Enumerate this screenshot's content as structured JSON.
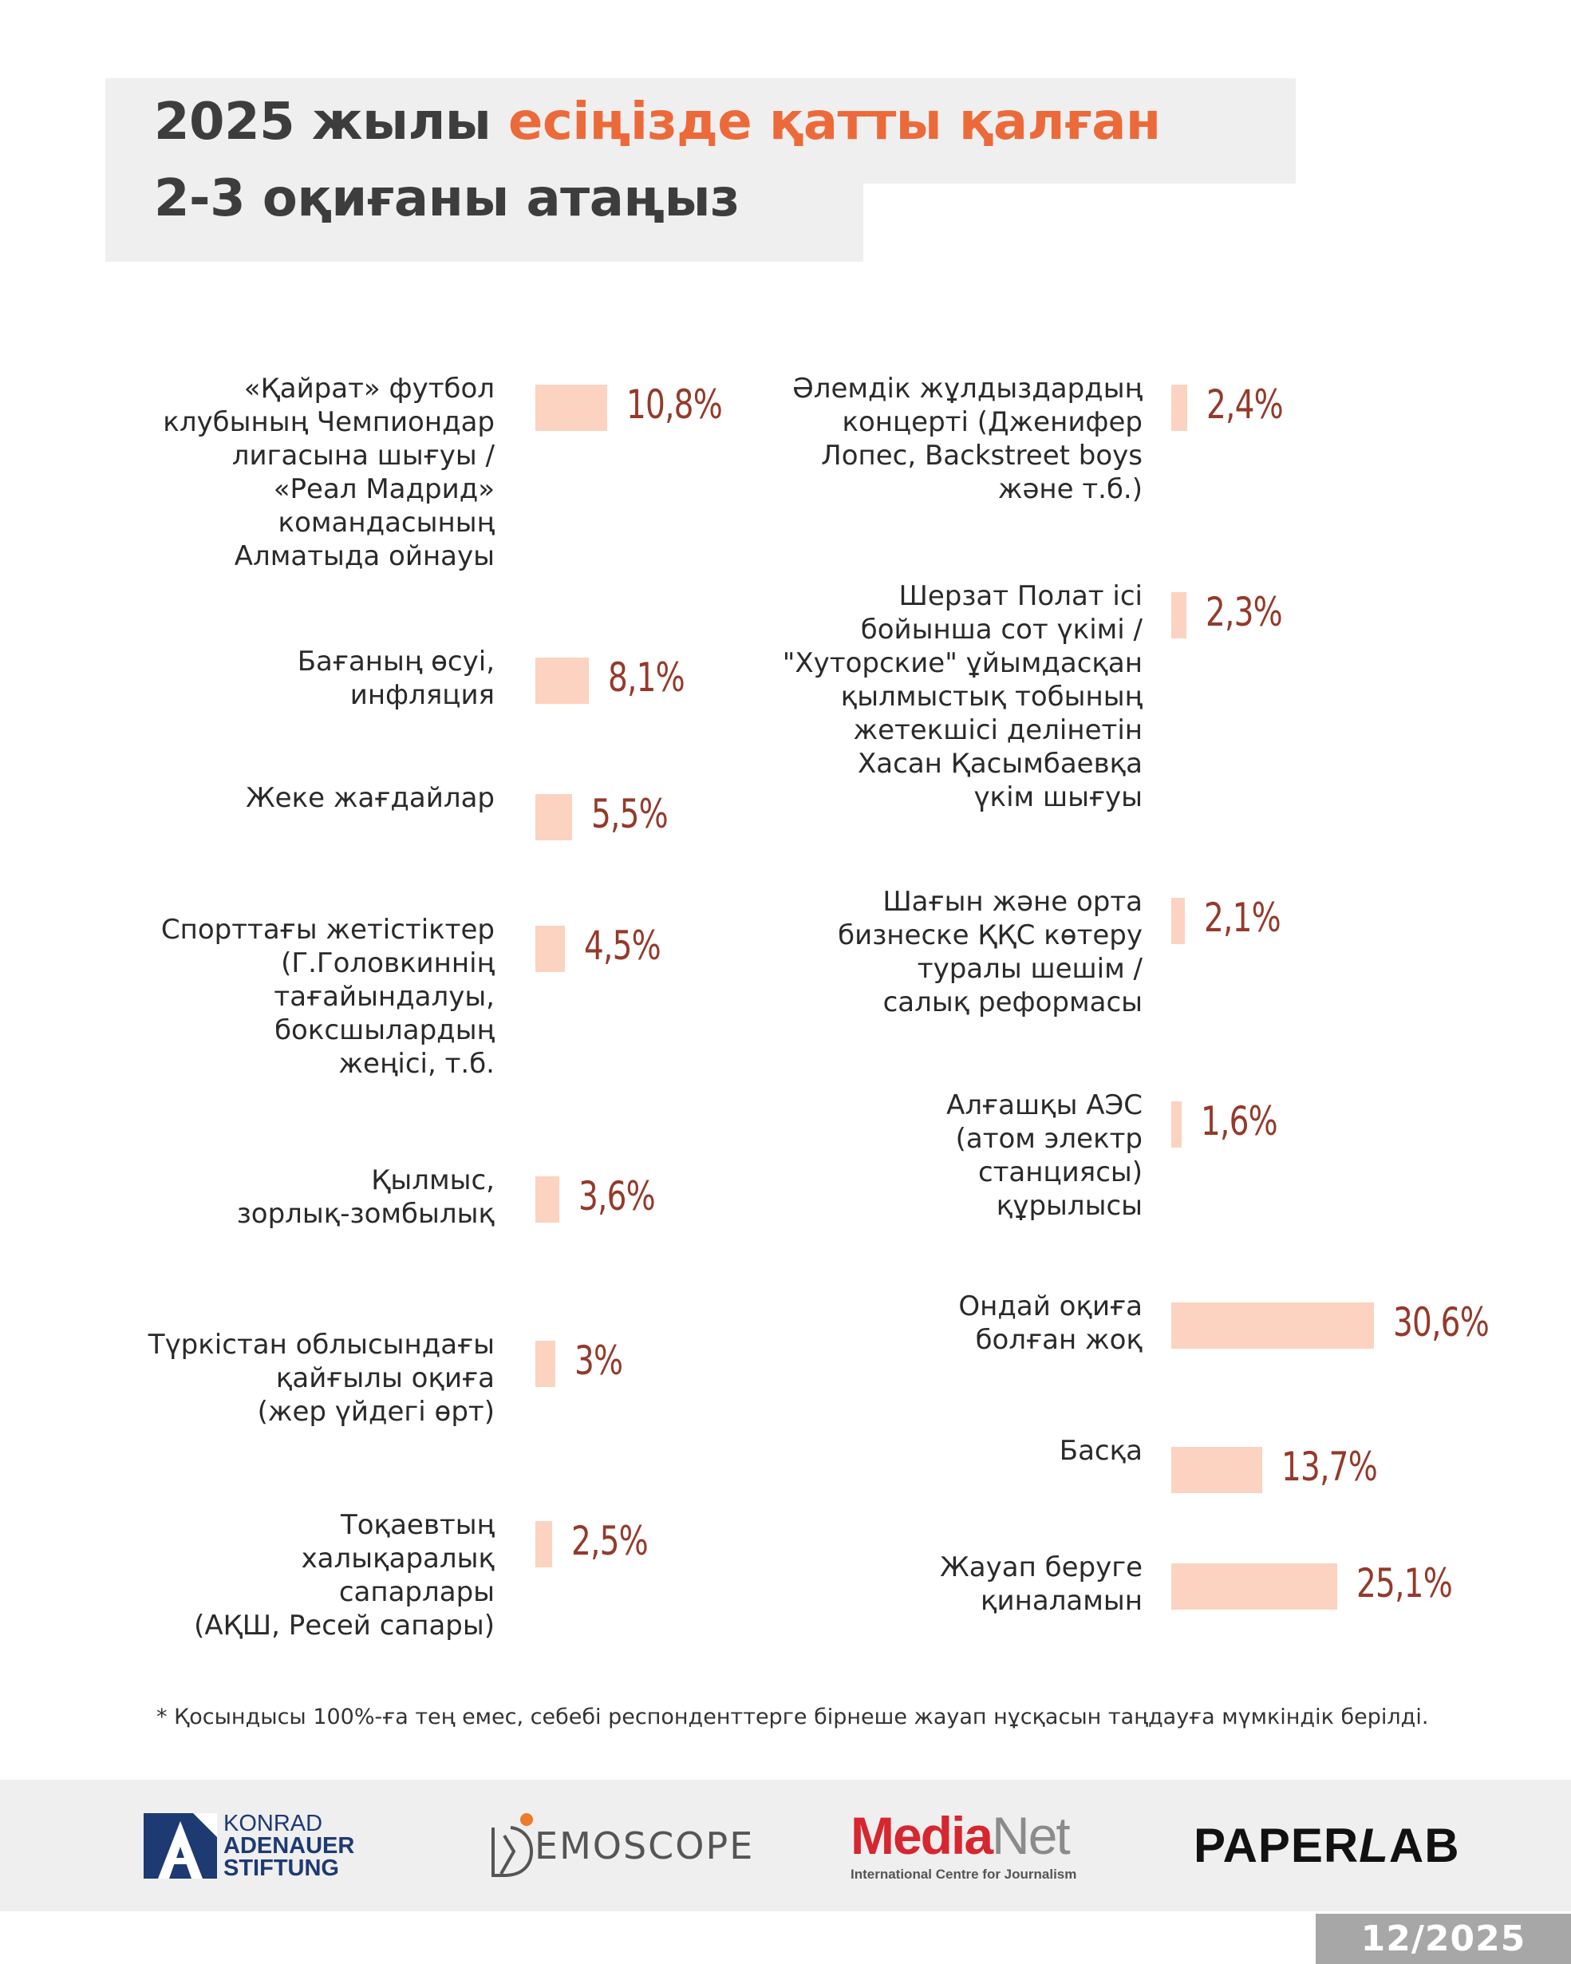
{
  "title": {
    "part1": "2025 жылы ",
    "highlight": "есіңізде қатты қалған",
    "line2": "2-3 оқиғаны атаңыз"
  },
  "colors": {
    "accent": "#ec6a3a",
    "bar": "#fbd3c0",
    "value": "#943a2b"
  },
  "chart_data": {
    "type": "bar",
    "orientation": "horizontal",
    "title": "2025 жылы есіңізде қатты қалған 2-3 оқиғаны атаңыз",
    "unit": "%",
    "columns": [
      {
        "column": "left",
        "categories": [
          "«Қайрат» футбол\nклубының Чемпиондар\nлигасына шығуы /\n«Реал Мадрид»\nкомандасының\nАлматыда ойнауы",
          "Бағаның өсуі,\nинфляция",
          "Жеке жағдайлар",
          "Спорттағы жетістіктер\n(Г.Головкиннің\nтағайындалуы,\nбоксшылардың\nжеңісі, т.б.",
          "Қылмыс,\nзорлық-зомбылық",
          "Түркістан облысындағы\nқайғылы оқиға\n(жер үйдегі өрт)",
          "Тоқаевтың\nхалықаралық\nсапарлары\n(АҚШ, Ресей сапары)"
        ],
        "values": [
          10.8,
          8.1,
          5.5,
          4.5,
          3.6,
          3,
          2.5
        ],
        "labels": [
          "10,8%",
          "8,1%",
          "5,5%",
          "4,5%",
          "3,6%",
          "3%",
          "2,5%"
        ]
      },
      {
        "column": "right",
        "categories": [
          "Әлемдік жұлдыздардың\nконцерті (Дженифер\nЛопес, Backstreet boys\nжәне т.б.)",
          "Шерзат Полат ісі\nбойынша сот үкімі /\n\"Хуторские\" ұйымдасқан\nқылмыстық тобының\nжетекшісі делінетін\nХасан Қасымбаевқа\nүкім шығуы",
          "Шағын және орта\nбизнеске ҚҚС көтеру\nтуралы шешім /\nсалық реформасы",
          "Алғашқы АЭС\n(атом электр\nстанциясы)\nқұрылысы",
          "Ондай оқиға\nболған жоқ",
          "Басқа",
          "Жауап беруге\nқиналамын"
        ],
        "values": [
          2.4,
          2.3,
          2.1,
          1.6,
          30.6,
          13.7,
          25.1
        ],
        "labels": [
          "2,4%",
          "2,3%",
          "2,1%",
          "1,6%",
          "30,6%",
          "13,7%",
          "25,1%"
        ]
      }
    ]
  },
  "footnote": "* Қосындысы 100%-ға тең емес, себебі респонденттерге бірнеше жауап нұсқасын таңдауға мүмкіндік берілді.",
  "footer": {
    "logos": {
      "kas": {
        "line1": "KONRAD",
        "line2": "ADENAUER",
        "line3": "STIFTUNG",
        "icon": "kas-a-icon"
      },
      "demoscope": {
        "text": "EMOSCOPE",
        "icon": "demoscope-d-icon"
      },
      "medianet": {
        "media": "Media",
        "net": "Net",
        "subtitle": "International Centre for Journalism"
      },
      "paperlab": {
        "paper": "PAPER",
        "l": "L",
        "ab": "AB"
      }
    },
    "date": "12/2025"
  }
}
